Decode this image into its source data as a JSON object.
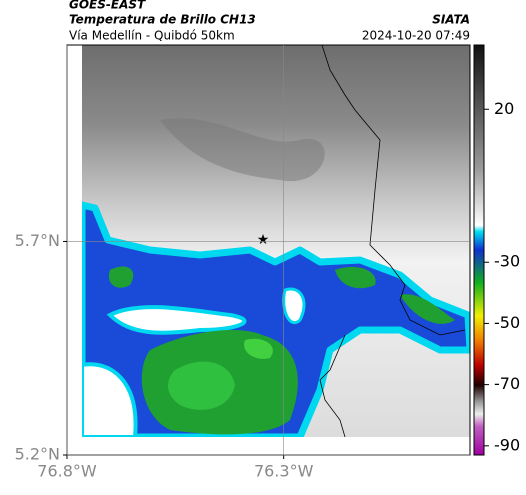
{
  "header": {
    "source": "GOES-EAST",
    "title": "Temperatura de Brillo CH13",
    "subtitle": "Vía Medellín - Quibdó 50km",
    "brand": "SIATA",
    "timestamp": "2024-10-20 07:49"
  },
  "map": {
    "xlim": [
      -76.8,
      -75.87
    ],
    "ylim": [
      5.2,
      6.16
    ],
    "xticks": [
      {
        "value": -76.8,
        "label": "76.8°W"
      },
      {
        "value": -76.3,
        "label": "76.3°W"
      }
    ],
    "yticks": [
      {
        "value": 5.2,
        "label": "5.2°N"
      },
      {
        "value": 5.7,
        "label": "5.7°N"
      }
    ],
    "grid": true
  },
  "colorbar": {
    "lim": [
      -93,
      41
    ],
    "ticks": [
      20,
      -30,
      -50,
      -70,
      -90
    ]
  }
}
